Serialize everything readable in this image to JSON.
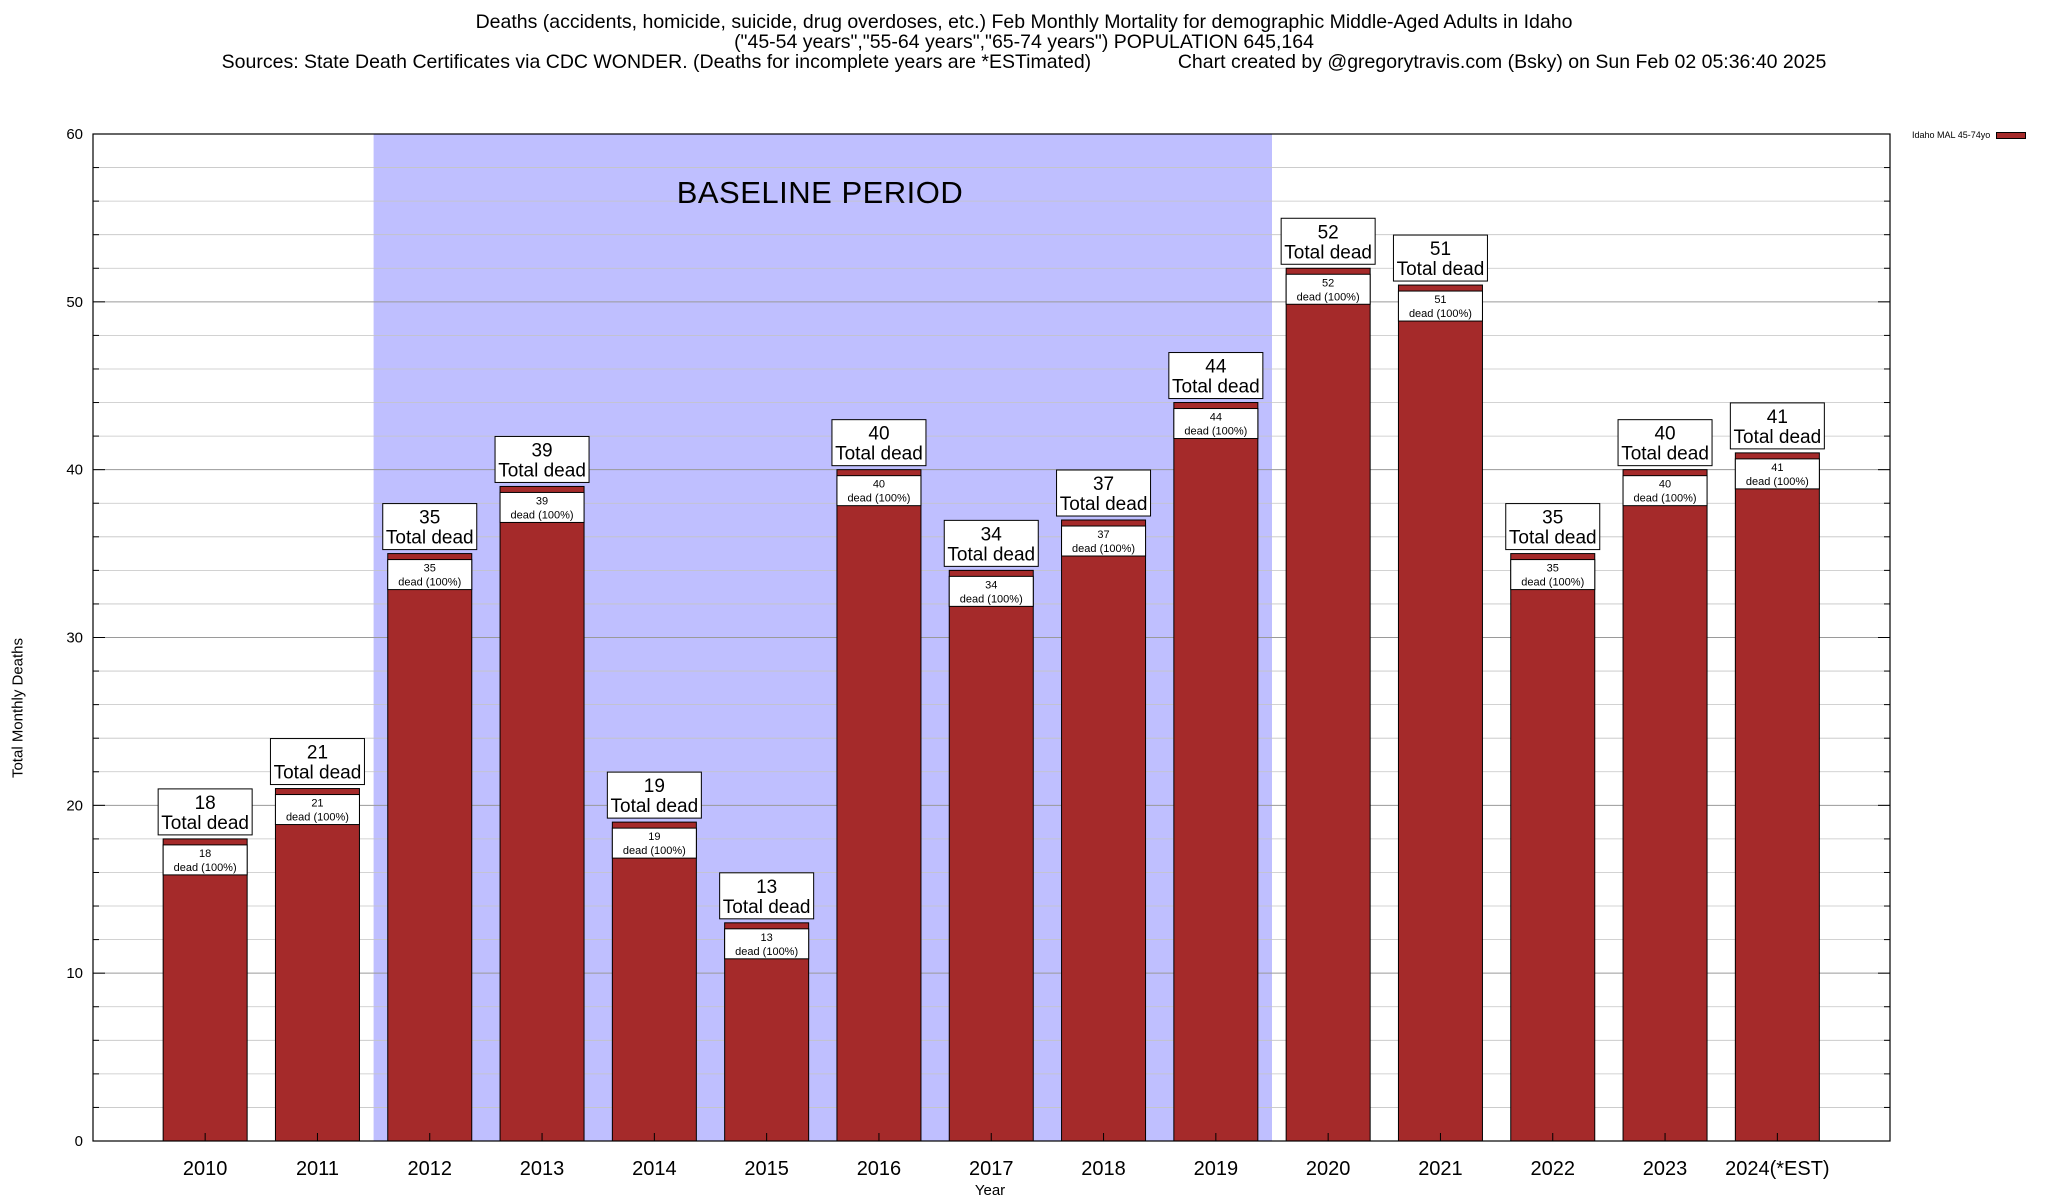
{
  "chart_data": {
    "type": "bar",
    "title_lines": [
      "Deaths (accidents, homicide, suicide, drug overdoses, etc.) Feb Monthly Mortality for demographic Middle-Aged Adults in Idaho",
      "(\"45-54 years\",\"55-64 years\",\"65-74 years\") POPULATION 645,164",
      "Sources: State Death Certificates via CDC WONDER. (Deaths for incomplete years are *ESTimated)                Chart created by @gregorytravis.com (Bsky) on Sun Feb 02 05:36:40 2025"
    ],
    "xlabel": "Year",
    "ylabel": "Total Monthly Deaths",
    "ylim": [
      0,
      60
    ],
    "y_ticks": [
      0,
      10,
      20,
      30,
      40,
      50,
      60
    ],
    "grid": true,
    "legend": {
      "position": "top-right",
      "entries": [
        {
          "name": "Idaho MAL 45-74yo",
          "color": "#a52a2a"
        }
      ]
    },
    "categories": [
      "2010",
      "2011",
      "2012",
      "2013",
      "2014",
      "2015",
      "2016",
      "2017",
      "2018",
      "2019",
      "2020",
      "2021",
      "2022",
      "2023",
      "2024(*EST)"
    ],
    "series": [
      {
        "name": "Idaho MAL 45-74yo",
        "color": "#a52a2a",
        "values": [
          18,
          21,
          35,
          39,
          19,
          13,
          40,
          34,
          37,
          44,
          52,
          51,
          35,
          40,
          41
        ]
      }
    ],
    "total_label_suffix": "Total dead",
    "inner_label_suffix": "dead (100%)",
    "shaded_region": {
      "label": "BASELINE PERIOD",
      "from_category": "2012",
      "to_category": "2019",
      "color": "#bfbfff"
    }
  }
}
